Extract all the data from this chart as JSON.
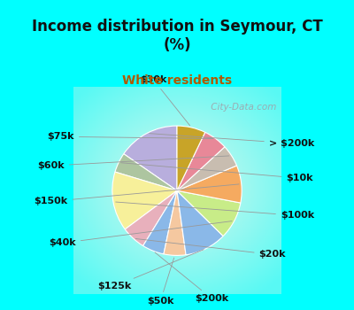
{
  "title": "Income distribution in Seymour, CT\n(%)",
  "subtitle": "White residents",
  "title_color": "#111111",
  "subtitle_color": "#b05a00",
  "bg_color": "#00ffff",
  "labels": [
    "> $200k",
    "$10k",
    "$100k",
    "$20k",
    "$200k",
    "$50k",
    "$125k",
    "$40k",
    "$150k",
    "$60k",
    "$75k",
    "$30k"
  ],
  "values": [
    14.0,
    4.5,
    13.5,
    5.5,
    5.0,
    5.0,
    9.5,
    8.5,
    8.5,
    5.0,
    5.5,
    6.5
  ],
  "colors": [
    "#b8aedd",
    "#adc5a0",
    "#f7f09a",
    "#e8b0bc",
    "#8ab8e8",
    "#f5c8a0",
    "#8ab8e8",
    "#c8ec88",
    "#f5aa60",
    "#c8bdb0",
    "#e88898",
    "#c8a428"
  ],
  "startangle": 90,
  "label_fontsize": 8,
  "watermark": " City-Data.com"
}
